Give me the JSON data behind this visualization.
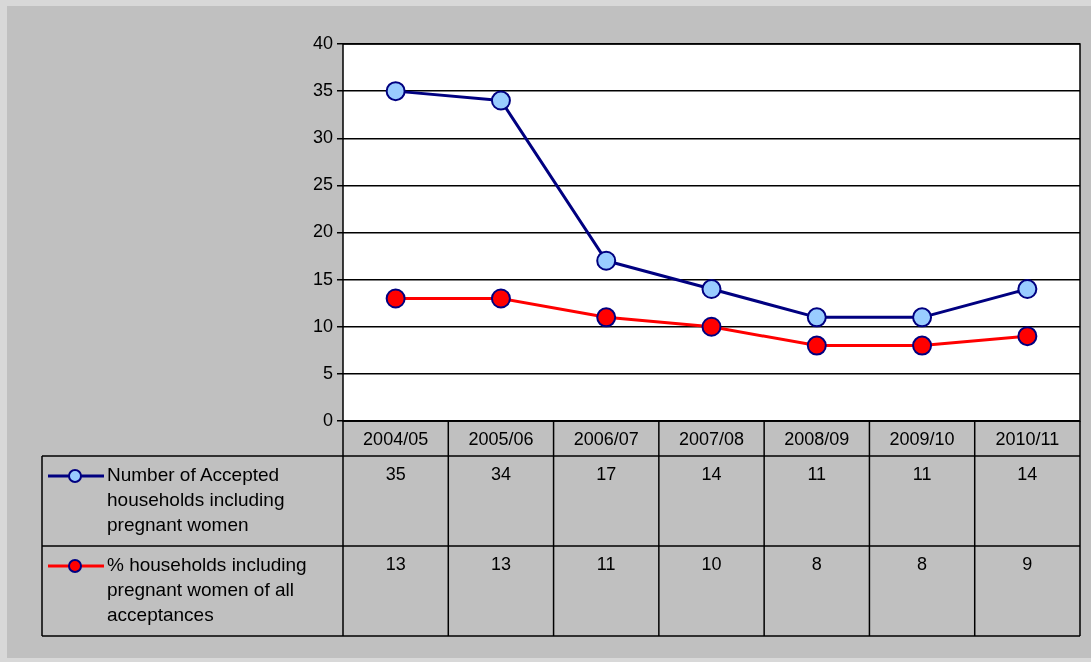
{
  "chart_data": {
    "type": "line",
    "categories": [
      "2004/05",
      "2005/06",
      "2006/07",
      "2007/08",
      "2008/09",
      "2009/10",
      "2010/11"
    ],
    "series": [
      {
        "name": "Number of Accepted households including pregnant women",
        "color": "#000080",
        "colors": [
          "#99ccff",
          "#99ccff",
          "#99ccff",
          "#99ccff",
          "#99ccff",
          "#99ccff",
          "#99ccff"
        ],
        "values": [
          35,
          34,
          17,
          14,
          11,
          11,
          14
        ]
      },
      {
        "name": "% households including pregnant women of all acceptances",
        "color": "#ff0000",
        "colors": [
          "#ff0000",
          "#ff0000",
          "#ff0000",
          "#ff0000",
          "#ff0000",
          "#ff0000",
          "#ff0000"
        ],
        "values": [
          13,
          13,
          11,
          10,
          8,
          8,
          9
        ]
      }
    ],
    "ylim": [
      0,
      40
    ],
    "yticks": [
      0,
      5,
      10,
      15,
      20,
      25,
      30,
      35,
      40
    ],
    "grid": "y",
    "marker": "circle",
    "line_style": "solid",
    "legend": "bottom left",
    "data_labels": true
  }
}
